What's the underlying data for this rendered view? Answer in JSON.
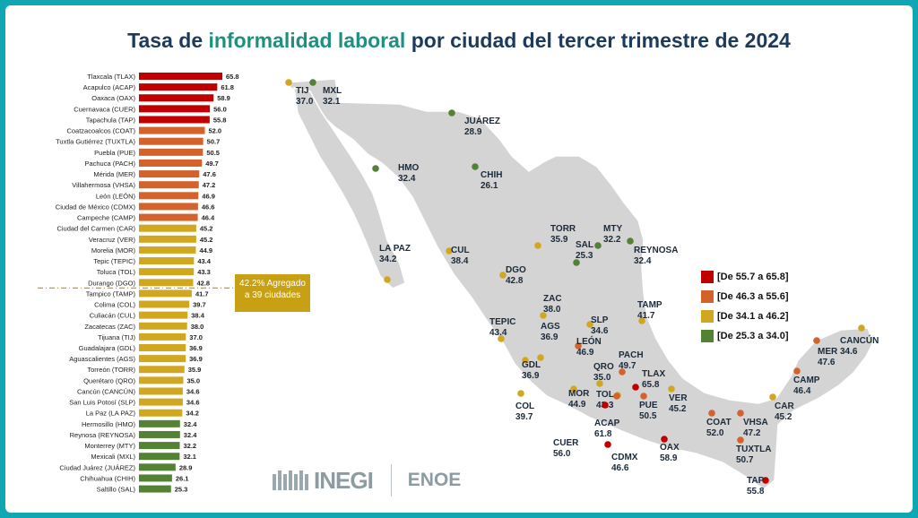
{
  "title": {
    "part1": "Tasa de ",
    "highlight": "informalidad laboral",
    "part2": " por ciudad del tercer trimestre de 2024"
  },
  "aggregate": {
    "line1": "42.2% Agregado",
    "line2": "a 39 ciudades",
    "value": 42.2
  },
  "legend": [
    {
      "label": "[De 55.7 a 65.8]",
      "color": "#c00000"
    },
    {
      "label": "[De 46.3 a 55.6]",
      "color": "#d4622b"
    },
    {
      "label": "[De 34.1 a 46.2]",
      "color": "#d1a71f"
    },
    {
      "label": "[De 25.3 a 34.0]",
      "color": "#548235"
    }
  ],
  "branding": {
    "logo": "INEGI",
    "survey": "ENOE"
  },
  "chart_data": {
    "type": "bar",
    "orientation": "horizontal",
    "categories": [
      "Tlaxcala (TLAX)",
      "Acapulco (ACAP)",
      "Oaxaca (OAX)",
      "Cuernavaca (CUER)",
      "Tapachula (TAP)",
      "Coatzacoalcos (COAT)",
      "Tuxtla Gutiérrez (TUXTLA)",
      "Puebla (PUE)",
      "Pachuca (PACH)",
      "Mérida (MER)",
      "Villahermosa (VHSA)",
      "León (LEÓN)",
      "Ciudad de México (CDMX)",
      "Campeche (CAMP)",
      "Ciudad del Carmen (CAR)",
      "Veracruz (VER)",
      "Morelia (MOR)",
      "Tepic (TEPIC)",
      "Toluca (TOL)",
      "Durango (DGO)",
      "Tampico (TAMP)",
      "Colima (COL)",
      "Culiacán (CUL)",
      "Zacatecas (ZAC)",
      "Tijuana (TIJ)",
      "Guadalajara (GDL)",
      "Aguascalientes (AGS)",
      "Torreón (TORR)",
      "Querétaro (QRO)",
      "Cancún (CANCÚN)",
      "San Luis Potosí (SLP)",
      "La Paz (LA PAZ)",
      "Hermosillo (HMO)",
      "Reynosa (REYNOSA)",
      "Monterrey (MTY)",
      "Mexicali (MXL)",
      "Ciudad Juárez (JUÁREZ)",
      "Chihuahua (CHIH)",
      "Saltillo (SAL)"
    ],
    "values": [
      65.8,
      61.8,
      58.9,
      56.0,
      55.8,
      52.0,
      50.7,
      50.5,
      49.7,
      47.6,
      47.2,
      46.9,
      46.6,
      46.4,
      45.2,
      45.2,
      44.9,
      43.4,
      43.3,
      42.8,
      41.7,
      39.7,
      38.4,
      38.0,
      37.0,
      36.9,
      36.9,
      35.9,
      35.0,
      34.6,
      34.6,
      34.2,
      32.4,
      32.4,
      32.2,
      32.1,
      28.9,
      26.1,
      25.3
    ],
    "value_labels": [
      "65.8",
      "61.8",
      "58.9",
      "56.0",
      "55.8",
      "52.0",
      "50.7",
      "50.5",
      "49.7",
      "47.6",
      "47.2",
      "46.9",
      "46.6",
      "46.4",
      "45.2",
      "45.2",
      "44.9",
      "43.4",
      "43.3",
      "42.8",
      "41.7",
      "39.7",
      "38.4",
      "38.0",
      "37.0",
      "36.9",
      "36.9",
      "35.9",
      "35.0",
      "34.6",
      "34.6",
      "34.2",
      "32.4",
      "32.4",
      "32.2",
      "32.1",
      "28.9",
      "26.1",
      "25.3"
    ],
    "xlim": [
      0,
      70
    ],
    "reference_line": 42.2
  },
  "map": {
    "cities": [
      {
        "code": "TIJ",
        "value": "37.0",
        "cls": 2
      },
      {
        "code": "MXL",
        "value": "32.1",
        "cls": 3
      },
      {
        "code": "JUÁREZ",
        "value": "28.9",
        "cls": 3
      },
      {
        "code": "HMO",
        "value": "32.4",
        "cls": 3
      },
      {
        "code": "CHIH",
        "value": "26.1",
        "cls": 3
      },
      {
        "code": "TORR",
        "value": "35.9",
        "cls": 2
      },
      {
        "code": "MTY",
        "value": "32.2",
        "cls": 3
      },
      {
        "code": "SAL",
        "value": "25.3",
        "cls": 3
      },
      {
        "code": "REYNOSA",
        "value": "32.4",
        "cls": 3
      },
      {
        "code": "LA PAZ",
        "value": "34.2",
        "cls": 2
      },
      {
        "code": "CUL",
        "value": "38.4",
        "cls": 2
      },
      {
        "code": "DGO",
        "value": "42.8",
        "cls": 2
      },
      {
        "code": "ZAC",
        "value": "38.0",
        "cls": 2
      },
      {
        "code": "TAMP",
        "value": "41.7",
        "cls": 2
      },
      {
        "code": "TEPIC",
        "value": "43.4",
        "cls": 2
      },
      {
        "code": "AGS",
        "value": "36.9",
        "cls": 2
      },
      {
        "code": "SLP",
        "value": "34.6",
        "cls": 2
      },
      {
        "code": "LEÓN",
        "value": "46.9",
        "cls": 1
      },
      {
        "code": "GDL",
        "value": "36.9",
        "cls": 2
      },
      {
        "code": "PACH",
        "value": "49.7",
        "cls": 1
      },
      {
        "code": "QRO",
        "value": "35.0",
        "cls": 2
      },
      {
        "code": "TLAX",
        "value": "65.8",
        "cls": 0
      },
      {
        "code": "MOR",
        "value": "44.9",
        "cls": 2
      },
      {
        "code": "TOL",
        "value": "43.3",
        "cls": 2
      },
      {
        "code": "PUE",
        "value": "50.5",
        "cls": 1
      },
      {
        "code": "VER",
        "value": "45.2",
        "cls": 2
      },
      {
        "code": "COL",
        "value": "39.7",
        "cls": 2
      },
      {
        "code": "ACAP",
        "value": "61.8",
        "cls": 0
      },
      {
        "code": "CUER",
        "value": "56.0",
        "cls": 0
      },
      {
        "code": "CDMX",
        "value": "46.6",
        "cls": 1
      },
      {
        "code": "OAX",
        "value": "58.9",
        "cls": 0
      },
      {
        "code": "COAT",
        "value": "52.0",
        "cls": 1
      },
      {
        "code": "VHSA",
        "value": "47.2",
        "cls": 1
      },
      {
        "code": "TUXTLA",
        "value": "50.7",
        "cls": 1
      },
      {
        "code": "TAP",
        "value": "55.8",
        "cls": 0
      },
      {
        "code": "CAR",
        "value": "45.2",
        "cls": 2
      },
      {
        "code": "CAMP",
        "value": "46.4",
        "cls": 1
      },
      {
        "code": "MER",
        "value": "47.6",
        "cls": 1
      },
      {
        "code": "CANCÚN",
        "value": "34.6",
        "cls": 2
      }
    ]
  }
}
